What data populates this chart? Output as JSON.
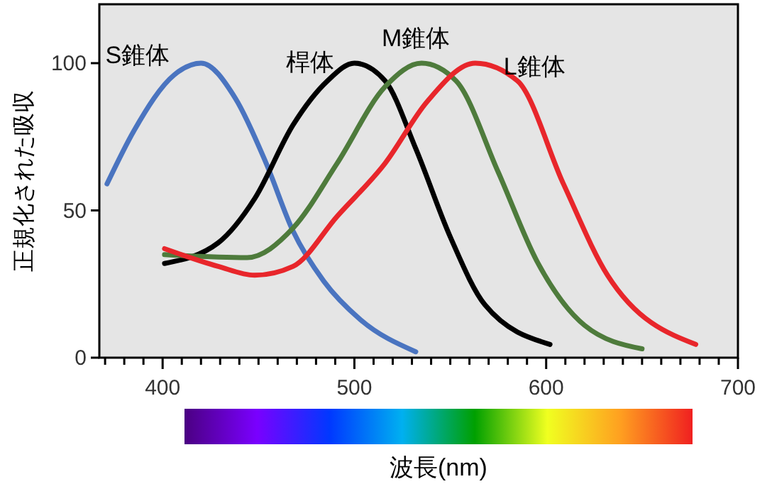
{
  "chart_data": {
    "type": "line",
    "xlabel": "波長(nm)",
    "ylabel": "正規化された吸収",
    "xlim": [
      367,
      700
    ],
    "ylim": [
      0,
      120
    ],
    "xticks": [
      {
        "value": 370,
        "label": null
      },
      {
        "value": 380,
        "label": null
      },
      {
        "value": 390,
        "label": null
      },
      400,
      {
        "value": 410,
        "label": null
      },
      {
        "value": 420,
        "label": null
      },
      {
        "value": 430,
        "label": null
      },
      {
        "value": 440,
        "label": null
      },
      {
        "value": 450,
        "label": null
      },
      {
        "value": 460,
        "label": null
      },
      {
        "value": 470,
        "label": null
      },
      {
        "value": 480,
        "label": null
      },
      {
        "value": 490,
        "label": null
      },
      500,
      {
        "value": 510,
        "label": null
      },
      {
        "value": 520,
        "label": null
      },
      {
        "value": 530,
        "label": null
      },
      {
        "value": 540,
        "label": null
      },
      {
        "value": 550,
        "label": null
      },
      {
        "value": 560,
        "label": null
      },
      {
        "value": 570,
        "label": null
      },
      {
        "value": 580,
        "label": null
      },
      {
        "value": 590,
        "label": null
      },
      600,
      {
        "value": 610,
        "label": null
      },
      {
        "value": 620,
        "label": null
      },
      {
        "value": 630,
        "label": null
      },
      {
        "value": 640,
        "label": null
      },
      {
        "value": 650,
        "label": null
      },
      {
        "value": 660,
        "label": null
      },
      {
        "value": 670,
        "label": null
      },
      {
        "value": 680,
        "label": null
      },
      {
        "value": 690,
        "label": null
      },
      700
    ],
    "yticks": [
      0,
      50,
      100
    ],
    "grid": false,
    "marker": "none",
    "line_style": "solid",
    "series": [
      {
        "name": "S錐体",
        "color": "#4a74c0",
        "x": [
          371,
          385,
          406,
          420,
          438,
          454,
          468,
          484,
          503,
          532
        ],
        "values": [
          59,
          77,
          96,
          100,
          88,
          66,
          43,
          26,
          13,
          2
        ]
      },
      {
        "name": "桿体",
        "color": "#000000",
        "x": [
          401,
          429,
          448,
          468,
          486,
          500,
          516,
          532,
          550,
          568,
          602
        ],
        "values": [
          32,
          39,
          54,
          79,
          94,
          100,
          94,
          71,
          41,
          18,
          4.5
        ]
      },
      {
        "name": "M錐体",
        "color": "#4e7b3c",
        "x": [
          401,
          444,
          468,
          491,
          516,
          535,
          553,
          575,
          595,
          620,
          650
        ],
        "values": [
          35,
          34,
          44,
          66,
          92,
          100,
          94,
          63,
          33,
          11,
          3
        ]
      },
      {
        "name": "L錐体",
        "color": "#e8262b",
        "x": [
          401,
          429,
          448,
          468,
          491,
          516,
          538,
          563,
          585,
          609,
          632,
          678
        ],
        "values": [
          37,
          31,
          28,
          31,
          48,
          66,
          87,
          100,
          94,
          59,
          28,
          4.5
        ]
      }
    ]
  }
}
